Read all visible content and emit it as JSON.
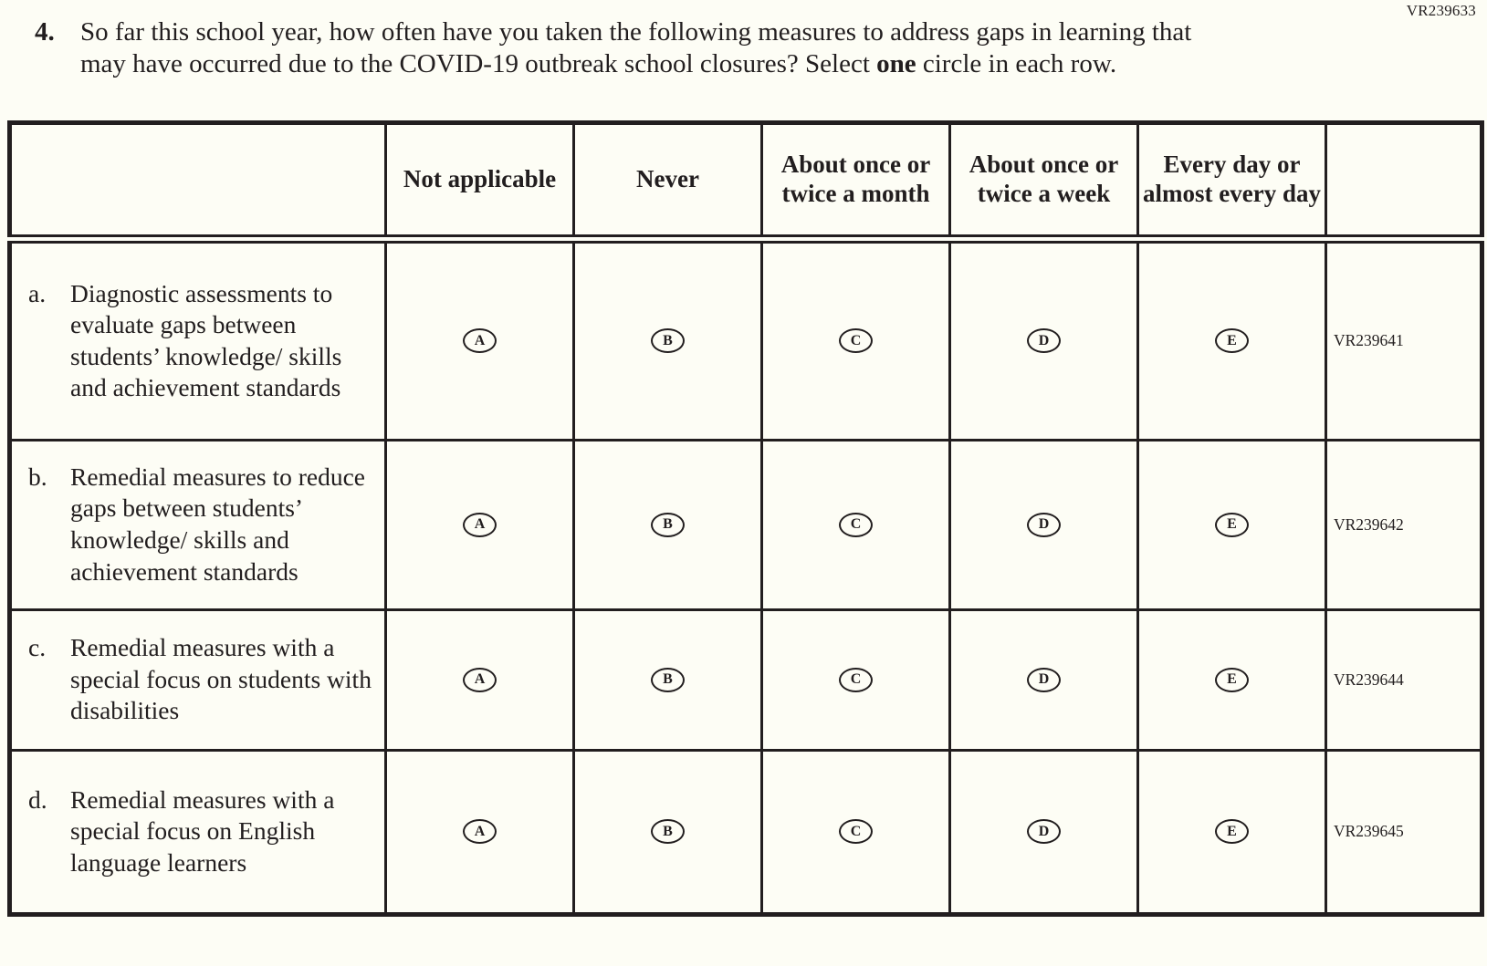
{
  "page": {
    "form_code": "VR239633"
  },
  "question": {
    "number": "4.",
    "text_before_bold": "So far this school year, how often have you taken the following measures to address gaps in learning that may have occurred due to the COVID-19 outbreak school closures? Select ",
    "bold_word": "one",
    "text_after_bold": " circle in each row."
  },
  "table": {
    "column_headers": [
      "Not applicable",
      "Never",
      "About once or twice a month",
      "About once or twice a week",
      "Every day or almost every day"
    ],
    "option_letters": [
      "A",
      "B",
      "C",
      "D",
      "E"
    ],
    "rows": [
      {
        "letter": "a.",
        "text": "Diagnostic assessments to evaluate gaps between students’ knowledge/ skills and achievement standards",
        "code": "VR239641"
      },
      {
        "letter": "b.",
        "text": "Remedial measures to reduce gaps between students’ knowledge/ skills and achievement standards",
        "code": "VR239642"
      },
      {
        "letter": "c.",
        "text": "Remedial measures with a special focus on students with disabilities",
        "code": "VR239644"
      },
      {
        "letter": "d.",
        "text": "Remedial measures with a special focus on English language learners",
        "code": "VR239645"
      }
    ]
  },
  "colors": {
    "ink": "#221e1f",
    "background": "#fdfdf5"
  }
}
